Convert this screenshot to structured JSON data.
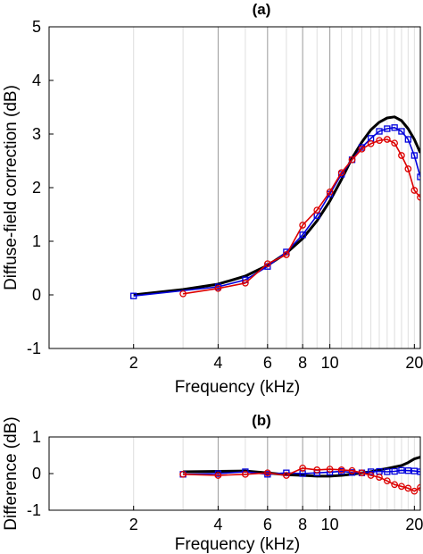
{
  "chart_data": [
    {
      "type": "line",
      "title": "(a)",
      "xlabel": "Frequency (kHz)",
      "ylabel": "Diffuse-field correction (dB)",
      "x_scale": "log",
      "xlim": [
        1,
        21
      ],
      "ylim": [
        -1,
        5
      ],
      "xticks": [
        2,
        4,
        6,
        8,
        10,
        20
      ],
      "xtick_labels": [
        "2",
        "4",
        "6",
        "8",
        "10",
        "20"
      ],
      "yticks": [
        -1,
        0,
        1,
        2,
        3,
        4,
        5
      ],
      "ytick_labels": [
        "-1",
        "0",
        "1",
        "2",
        "3",
        "4",
        "5"
      ],
      "grid": "vertical lines at each kHz",
      "series": [
        {
          "color": "#000000",
          "marker": "none",
          "x": [
            2,
            3,
            4,
            5,
            6,
            7,
            8,
            9,
            10,
            11,
            12,
            13,
            14,
            15,
            16,
            17,
            18,
            19,
            20,
            21
          ],
          "y": [
            0.0,
            0.1,
            0.2,
            0.35,
            0.55,
            0.78,
            1.05,
            1.38,
            1.75,
            2.15,
            2.55,
            2.85,
            3.08,
            3.22,
            3.3,
            3.32,
            3.25,
            3.1,
            2.9,
            2.65
          ]
        },
        {
          "color": "#0000dd",
          "marker": "square",
          "x": [
            2,
            4,
            5,
            6,
            7,
            8,
            9,
            10,
            11,
            12,
            13,
            14,
            15,
            16,
            17,
            18,
            19,
            20,
            21
          ],
          "y": [
            -0.02,
            0.15,
            0.28,
            0.53,
            0.8,
            1.12,
            1.48,
            1.88,
            2.25,
            2.52,
            2.75,
            2.92,
            3.05,
            3.1,
            3.12,
            3.05,
            2.9,
            2.6,
            2.2
          ]
        },
        {
          "color": "#dd0000",
          "marker": "circle",
          "x": [
            3,
            4,
            5,
            6,
            7,
            8,
            9,
            10,
            11,
            12,
            13,
            14,
            15,
            16,
            17,
            18,
            19,
            20,
            21
          ],
          "y": [
            0.02,
            0.12,
            0.22,
            0.58,
            0.75,
            1.3,
            1.58,
            1.92,
            2.28,
            2.52,
            2.72,
            2.82,
            2.88,
            2.9,
            2.83,
            2.6,
            2.35,
            1.95,
            1.82
          ]
        }
      ]
    },
    {
      "type": "line",
      "title": "(b)",
      "xlabel": "Frequency (kHz)",
      "ylabel": "Difference (dB)",
      "x_scale": "log",
      "xlim": [
        1,
        21
      ],
      "ylim": [
        -1,
        1
      ],
      "xticks": [
        2,
        4,
        6,
        8,
        10,
        20
      ],
      "xtick_labels": [
        "2",
        "4",
        "6",
        "8",
        "10",
        "20"
      ],
      "yticks": [
        -1,
        0,
        1
      ],
      "ytick_labels": [
        "-1",
        "0",
        "1"
      ],
      "grid": "vertical lines at each kHz",
      "series": [
        {
          "color": "#000000",
          "marker": "none",
          "x": [
            3,
            4,
            5,
            6,
            7,
            8,
            9,
            10,
            11,
            12,
            13,
            14,
            15,
            16,
            17,
            18,
            19,
            20,
            21
          ],
          "y": [
            0.05,
            0.06,
            0.07,
            0.02,
            -0.03,
            -0.05,
            -0.07,
            -0.07,
            -0.05,
            -0.02,
            0.02,
            0.05,
            0.1,
            0.14,
            0.18,
            0.22,
            0.3,
            0.4,
            0.45
          ]
        },
        {
          "color": "#0000dd",
          "marker": "square",
          "x": [
            3,
            4,
            5,
            6,
            7,
            8,
            9,
            10,
            11,
            12,
            13,
            14,
            15,
            16,
            17,
            18,
            19,
            20,
            21
          ],
          "y": [
            -0.02,
            0.0,
            0.05,
            -0.02,
            0.02,
            0.0,
            0.02,
            0.04,
            0.06,
            0.03,
            0.02,
            0.05,
            0.06,
            0.05,
            0.06,
            0.09,
            0.08,
            0.07,
            0.05
          ]
        },
        {
          "color": "#dd0000",
          "marker": "circle",
          "x": [
            3,
            4,
            5,
            6,
            7,
            8,
            9,
            10,
            11,
            12,
            13,
            14,
            15,
            16,
            17,
            18,
            19,
            20,
            21
          ],
          "y": [
            -0.02,
            -0.05,
            -0.02,
            0.02,
            -0.05,
            0.15,
            0.1,
            0.12,
            0.1,
            0.08,
            0.02,
            -0.05,
            -0.1,
            -0.2,
            -0.3,
            -0.35,
            -0.4,
            -0.48,
            -0.38
          ]
        }
      ]
    }
  ]
}
